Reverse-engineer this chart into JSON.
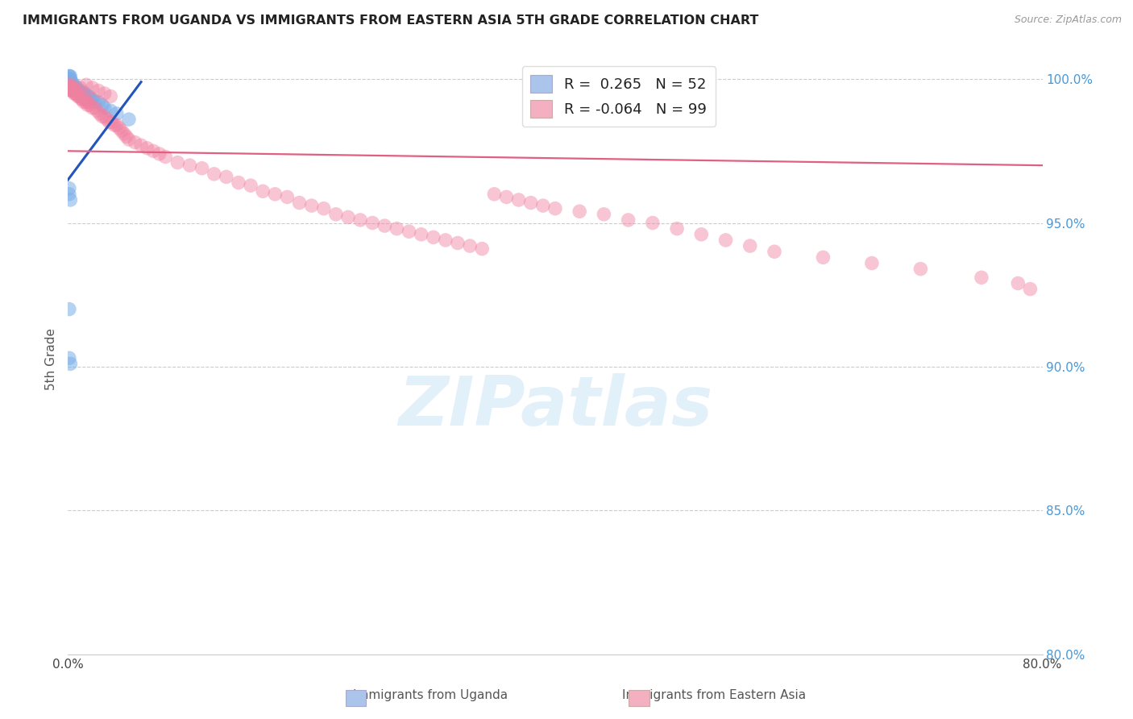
{
  "title": "IMMIGRANTS FROM UGANDA VS IMMIGRANTS FROM EASTERN ASIA 5TH GRADE CORRELATION CHART",
  "source": "Source: ZipAtlas.com",
  "ylabel": "5th Grade",
  "x_min": 0.0,
  "x_max": 0.8,
  "y_min": 0.8,
  "y_max": 1.005,
  "y_ticks": [
    0.8,
    0.85,
    0.9,
    0.95,
    1.0
  ],
  "y_tick_labels": [
    "80.0%",
    "85.0%",
    "90.0%",
    "95.0%",
    "100.0%"
  ],
  "x_ticks": [
    0.0,
    0.1,
    0.2,
    0.3,
    0.4,
    0.5,
    0.6,
    0.7,
    0.8
  ],
  "x_tick_labels": [
    "0.0%",
    "",
    "",
    "",
    "",
    "",
    "",
    "",
    "80.0%"
  ],
  "blue_color": "#7baee8",
  "pink_color": "#f080a0",
  "blue_line_color": "#2255bb",
  "pink_line_color": "#e06080",
  "blue_legend_color": "#aac4ec",
  "pink_legend_color": "#f4b0c0",
  "watermark_text": "ZIPatlas",
  "watermark_color": "#ddeef8",
  "blue_scatter_x": [
    0.001,
    0.001,
    0.001,
    0.001,
    0.001,
    0.001,
    0.001,
    0.002,
    0.002,
    0.002,
    0.002,
    0.002,
    0.003,
    0.003,
    0.003,
    0.003,
    0.004,
    0.004,
    0.004,
    0.005,
    0.005,
    0.006,
    0.006,
    0.007,
    0.007,
    0.008,
    0.009,
    0.01,
    0.011,
    0.012,
    0.013,
    0.014,
    0.015,
    0.016,
    0.017,
    0.018,
    0.019,
    0.02,
    0.022,
    0.025,
    0.028,
    0.03,
    0.035,
    0.04,
    0.05,
    0.001,
    0.001,
    0.002,
    0.001,
    0.001,
    0.002
  ],
  "blue_scatter_y": [
    1.001,
    1.0,
    0.999,
    0.998,
    0.997,
    1.001,
    1.0,
    1.001,
    1.0,
    0.999,
    0.998,
    0.997,
    0.999,
    0.998,
    0.997,
    0.996,
    0.998,
    0.997,
    0.996,
    0.998,
    0.997,
    0.997,
    0.996,
    0.997,
    0.996,
    0.996,
    0.996,
    0.996,
    0.995,
    0.995,
    0.995,
    0.995,
    0.994,
    0.994,
    0.994,
    0.993,
    0.993,
    0.993,
    0.992,
    0.992,
    0.991,
    0.99,
    0.989,
    0.988,
    0.986,
    0.962,
    0.96,
    0.958,
    0.92,
    0.903,
    0.901
  ],
  "pink_scatter_x": [
    0.001,
    0.001,
    0.002,
    0.002,
    0.003,
    0.003,
    0.004,
    0.004,
    0.005,
    0.005,
    0.006,
    0.006,
    0.007,
    0.008,
    0.009,
    0.01,
    0.011,
    0.012,
    0.013,
    0.014,
    0.015,
    0.016,
    0.017,
    0.018,
    0.02,
    0.022,
    0.024,
    0.026,
    0.028,
    0.03,
    0.032,
    0.034,
    0.036,
    0.038,
    0.04,
    0.042,
    0.044,
    0.046,
    0.048,
    0.05,
    0.055,
    0.06,
    0.065,
    0.07,
    0.075,
    0.08,
    0.09,
    0.1,
    0.11,
    0.12,
    0.13,
    0.14,
    0.15,
    0.16,
    0.17,
    0.18,
    0.19,
    0.2,
    0.21,
    0.22,
    0.23,
    0.24,
    0.25,
    0.26,
    0.27,
    0.28,
    0.29,
    0.3,
    0.31,
    0.32,
    0.33,
    0.34,
    0.35,
    0.36,
    0.37,
    0.38,
    0.39,
    0.4,
    0.42,
    0.44,
    0.46,
    0.48,
    0.5,
    0.52,
    0.54,
    0.56,
    0.58,
    0.62,
    0.66,
    0.7,
    0.75,
    0.78,
    0.79,
    0.01,
    0.015,
    0.02,
    0.025,
    0.03,
    0.035
  ],
  "pink_scatter_y": [
    0.998,
    0.997,
    0.998,
    0.997,
    0.997,
    0.996,
    0.997,
    0.996,
    0.996,
    0.995,
    0.996,
    0.995,
    0.995,
    0.994,
    0.994,
    0.994,
    0.993,
    0.993,
    0.992,
    0.993,
    0.992,
    0.991,
    0.992,
    0.991,
    0.99,
    0.99,
    0.989,
    0.988,
    0.987,
    0.987,
    0.986,
    0.985,
    0.985,
    0.984,
    0.984,
    0.983,
    0.982,
    0.981,
    0.98,
    0.979,
    0.978,
    0.977,
    0.976,
    0.975,
    0.974,
    0.973,
    0.971,
    0.97,
    0.969,
    0.967,
    0.966,
    0.964,
    0.963,
    0.961,
    0.96,
    0.959,
    0.957,
    0.956,
    0.955,
    0.953,
    0.952,
    0.951,
    0.95,
    0.949,
    0.948,
    0.947,
    0.946,
    0.945,
    0.944,
    0.943,
    0.942,
    0.941,
    0.96,
    0.959,
    0.958,
    0.957,
    0.956,
    0.955,
    0.954,
    0.953,
    0.951,
    0.95,
    0.948,
    0.946,
    0.944,
    0.942,
    0.94,
    0.938,
    0.936,
    0.934,
    0.931,
    0.929,
    0.927,
    0.997,
    0.998,
    0.997,
    0.996,
    0.995,
    0.994
  ],
  "pink_trend_x0": 0.0,
  "pink_trend_y0": 0.975,
  "pink_trend_x1": 0.8,
  "pink_trend_y1": 0.97,
  "blue_trend_x0": 0.0,
  "blue_trend_y0": 0.965,
  "blue_trend_x1": 0.06,
  "blue_trend_y1": 0.999
}
